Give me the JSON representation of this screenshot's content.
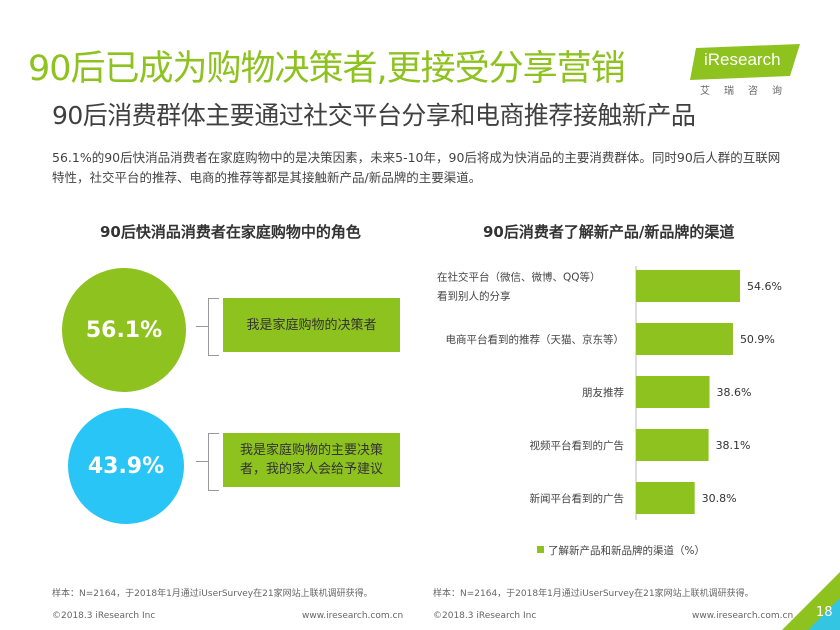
{
  "title": "90后已成为购物决策者,更接受分享营销",
  "logo": {
    "text": "iResearch",
    "sub": "艾瑞咨询",
    "color": "#8dc21f"
  },
  "subtitle": "90后消费群体主要通过社交平台分享和电商推荐接触新产品",
  "intro": "56.1%的90后快消品消费者在家庭购物中的是决策因素，未来5-10年，90后将成为快消品的主要消费群体。同时90后人群的互联网特性，社交平台的推荐、电商的推荐等都是其接触新产品/新品牌的主要渠道。",
  "left_panel": {
    "title": "90后快消品消费者在家庭购物中的角色",
    "items": [
      {
        "value": "56.1%",
        "label": "我是家庭购物的决策者",
        "color": "#8dc21f"
      },
      {
        "value": "43.9%",
        "label": "我是家庭购物的主要决策者，我的家人会给予建议",
        "color": "#29c5f6"
      }
    ]
  },
  "chart_data": {
    "type": "bar",
    "orientation": "horizontal",
    "title": "90后消费者了解新产品/新品牌的渠道",
    "categories": [
      "在社交平台（微信、微博、QQ等）看到别人的分享",
      "电商平台看到的推荐（天猫、京东等）",
      "朋友推荐",
      "视频平台看到的广告",
      "新闻平台看到的广告"
    ],
    "series": [
      {
        "name": "了解新产品和新品牌的渠道（%）",
        "values": [
          54.6,
          50.9,
          38.6,
          38.1,
          30.8
        ],
        "color": "#8dc21f"
      }
    ],
    "value_labels": [
      "54.6%",
      "50.9%",
      "38.6%",
      "38.1%",
      "30.8%"
    ],
    "xlim": [
      0,
      100
    ],
    "legend_position": "bottom",
    "grid": false
  },
  "footnotes": {
    "left_sample": "样本：N=2164，于2018年1月通过iUserSurvey在21家网站上联机调研获得。",
    "right_sample": "样本：N=2164，于2018年1月通过iUserSurvey在21家网站上联机调研获得。",
    "copyright_left": "©2018.3 iResearch Inc",
    "url_left": "www.iresearch.com.cn",
    "copyright_right": "©2018.3 iResearch Inc",
    "url_right": "www.iresearch.com.cn"
  },
  "page_number": "18"
}
